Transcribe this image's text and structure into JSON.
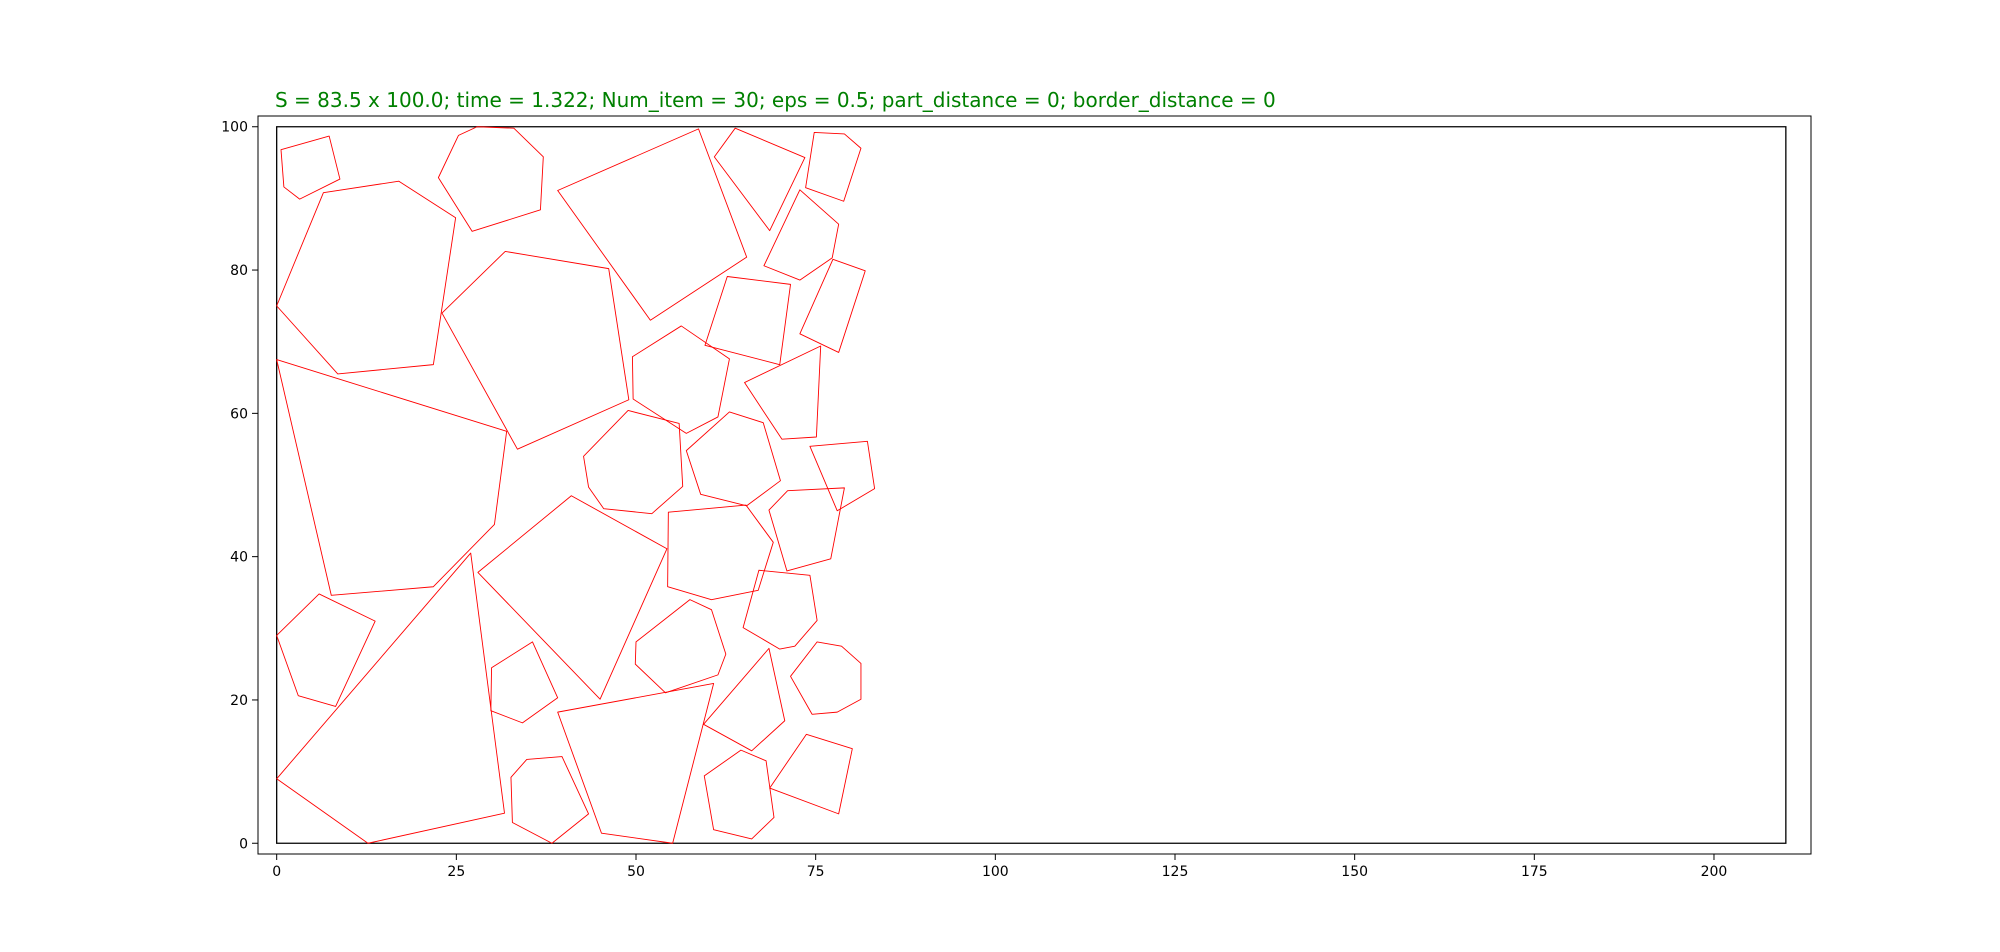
{
  "chart_data": {
    "type": "polygon-packing",
    "title": "S = 83.5 x 100.0;  time = 1.322;  Num_item = 30;  eps = 0.5;  part_distance = 0;  border_distance = 0",
    "xlim": [
      -2.6,
      213.5
    ],
    "ylim": [
      -1.5,
      101.5
    ],
    "x_ticks": [
      0,
      25,
      50,
      75,
      100,
      125,
      150,
      175,
      200
    ],
    "y_ticks": [
      0,
      20,
      40,
      60,
      80,
      100
    ],
    "colors": {
      "title": "#008000",
      "polygon": "#ff0000",
      "container": "#000000",
      "axes": "#000000"
    },
    "container": [
      [
        0,
        0
      ],
      [
        210,
        0
      ],
      [
        210,
        100
      ],
      [
        0,
        100
      ]
    ],
    "polygons": [
      [
        [
          0.6,
          96.8
        ],
        [
          7.3,
          98.7
        ],
        [
          8.8,
          92.7
        ],
        [
          3.2,
          89.9
        ],
        [
          1.0,
          91.6
        ]
      ],
      [
        [
          22.5,
          92.9
        ],
        [
          25.3,
          98.8
        ],
        [
          27.9,
          100.0
        ],
        [
          33.0,
          99.8
        ],
        [
          37.1,
          95.8
        ],
        [
          36.7,
          88.4
        ],
        [
          27.2,
          85.4
        ]
      ],
      [
        [
          39.1,
          91.1
        ],
        [
          58.7,
          99.7
        ],
        [
          65.4,
          81.8
        ],
        [
          52.0,
          73.0
        ]
      ],
      [
        [
          60.9,
          95.8
        ],
        [
          63.8,
          99.8
        ],
        [
          73.5,
          95.7
        ],
        [
          68.6,
          85.5
        ]
      ],
      [
        [
          74.8,
          99.2
        ],
        [
          79.0,
          99.0
        ],
        [
          81.3,
          97.0
        ],
        [
          78.9,
          89.6
        ],
        [
          73.6,
          91.5
        ]
      ],
      [
        [
          6.5,
          90.8
        ],
        [
          17.0,
          92.4
        ],
        [
          24.9,
          87.3
        ],
        [
          21.8,
          66.8
        ],
        [
          8.5,
          65.5
        ],
        [
          0.0,
          75.0
        ]
      ],
      [
        [
          72.8,
          91.2
        ],
        [
          78.2,
          86.4
        ],
        [
          77.3,
          81.7
        ],
        [
          72.8,
          78.6
        ],
        [
          67.8,
          80.6
        ]
      ],
      [
        [
          31.8,
          82.6
        ],
        [
          46.2,
          80.2
        ],
        [
          49.0,
          61.9
        ],
        [
          33.5,
          55.0
        ],
        [
          23.0,
          74.0
        ]
      ],
      [
        [
          77.4,
          81.5
        ],
        [
          81.9,
          79.9
        ],
        [
          78.2,
          68.5
        ],
        [
          72.8,
          71.1
        ]
      ],
      [
        [
          62.7,
          79.1
        ],
        [
          71.5,
          78.0
        ],
        [
          70.0,
          66.8
        ],
        [
          59.6,
          69.5
        ]
      ],
      [
        [
          49.5,
          67.9
        ],
        [
          56.3,
          72.2
        ],
        [
          63.0,
          67.6
        ],
        [
          61.4,
          59.5
        ],
        [
          57.0,
          57.2
        ],
        [
          49.6,
          62.0
        ]
      ],
      [
        [
          0.0,
          67.5
        ],
        [
          32.0,
          57.5
        ],
        [
          30.3,
          44.5
        ],
        [
          21.8,
          35.8
        ],
        [
          7.6,
          34.6
        ]
      ],
      [
        [
          65.1,
          64.3
        ],
        [
          75.7,
          69.4
        ],
        [
          75.1,
          56.7
        ],
        [
          70.3,
          56.4
        ]
      ],
      [
        [
          42.7,
          54.0
        ],
        [
          48.9,
          60.4
        ],
        [
          56.0,
          58.6
        ],
        [
          56.5,
          49.8
        ],
        [
          52.2,
          46.0
        ],
        [
          45.5,
          46.7
        ],
        [
          43.4,
          49.7
        ]
      ],
      [
        [
          57.0,
          54.8
        ],
        [
          63.0,
          60.2
        ],
        [
          67.7,
          58.7
        ],
        [
          70.1,
          50.6
        ],
        [
          65.4,
          47.1
        ],
        [
          59.0,
          48.7
        ]
      ],
      [
        [
          74.2,
          55.4
        ],
        [
          82.2,
          56.1
        ],
        [
          83.2,
          49.5
        ],
        [
          78.0,
          46.4
        ]
      ],
      [
        [
          28.0,
          37.8
        ],
        [
          41.0,
          48.5
        ],
        [
          54.3,
          41.1
        ],
        [
          45.0,
          20.1
        ]
      ],
      [
        [
          68.5,
          46.5
        ],
        [
          71.1,
          49.2
        ],
        [
          79.0,
          49.6
        ],
        [
          77.1,
          39.7
        ],
        [
          71.0,
          38.0
        ]
      ],
      [
        [
          54.5,
          46.2
        ],
        [
          65.3,
          47.2
        ],
        [
          69.1,
          42.0
        ],
        [
          67.0,
          35.3
        ],
        [
          60.5,
          34.0
        ],
        [
          54.4,
          35.8
        ]
      ],
      [
        [
          5.9,
          34.8
        ],
        [
          13.7,
          31.0
        ],
        [
          8.2,
          19.1
        ],
        [
          3.0,
          20.6
        ],
        [
          0.0,
          29.0
        ]
      ],
      [
        [
          0.0,
          9.0
        ],
        [
          27.0,
          40.5
        ],
        [
          31.7,
          4.2
        ],
        [
          12.7,
          0.0
        ]
      ],
      [
        [
          67.1,
          38.1
        ],
        [
          74.2,
          37.4
        ],
        [
          75.2,
          31.1
        ],
        [
          72.1,
          27.5
        ],
        [
          70.0,
          27.1
        ],
        [
          64.9,
          30.1
        ]
      ],
      [
        [
          50.0,
          28.1
        ],
        [
          57.5,
          34.0
        ],
        [
          60.5,
          32.6
        ],
        [
          62.5,
          26.4
        ],
        [
          61.4,
          23.5
        ],
        [
          54.1,
          21.0
        ],
        [
          49.9,
          25.0
        ]
      ],
      [
        [
          29.9,
          24.5
        ],
        [
          35.6,
          28.1
        ],
        [
          39.1,
          20.3
        ],
        [
          34.2,
          16.8
        ],
        [
          29.8,
          18.5
        ]
      ],
      [
        [
          71.5,
          23.3
        ],
        [
          75.2,
          28.1
        ],
        [
          78.6,
          27.5
        ],
        [
          81.3,
          25.1
        ],
        [
          81.3,
          20.1
        ],
        [
          78.0,
          18.3
        ],
        [
          74.5,
          18.0
        ]
      ],
      [
        [
          68.5,
          27.2
        ],
        [
          59.4,
          16.6
        ],
        [
          66.1,
          12.9
        ],
        [
          70.7,
          17.1
        ]
      ],
      [
        [
          39.1,
          18.3
        ],
        [
          60.8,
          22.3
        ],
        [
          55.1,
          0.0
        ],
        [
          45.2,
          1.4
        ]
      ],
      [
        [
          32.6,
          9.2
        ],
        [
          34.8,
          11.7
        ],
        [
          39.7,
          12.1
        ],
        [
          43.4,
          4.1
        ],
        [
          38.3,
          0.0
        ],
        [
          32.8,
          2.9
        ]
      ],
      [
        [
          59.5,
          9.4
        ],
        [
          64.6,
          13.0
        ],
        [
          68.1,
          11.5
        ],
        [
          69.2,
          3.6
        ],
        [
          66.1,
          0.6
        ],
        [
          60.8,
          1.9
        ]
      ],
      [
        [
          73.7,
          15.2
        ],
        [
          80.1,
          13.2
        ],
        [
          78.2,
          4.1
        ],
        [
          68.6,
          7.7
        ]
      ]
    ]
  }
}
